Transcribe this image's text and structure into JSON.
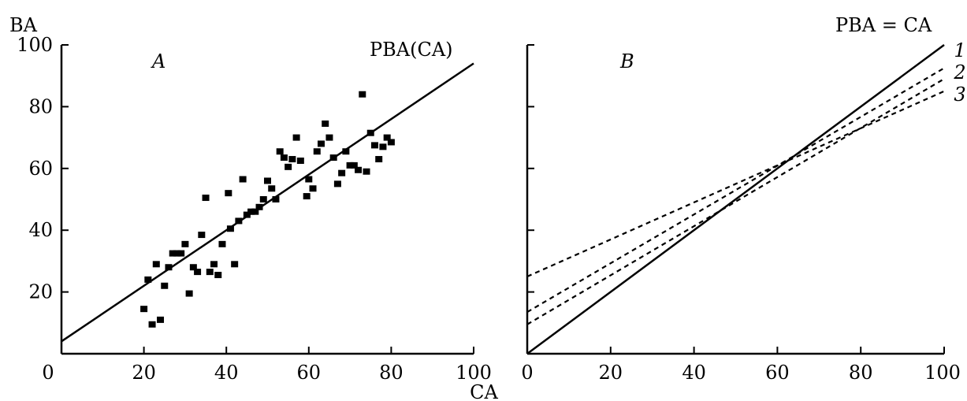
{
  "chart_data": [
    {
      "type": "scatter",
      "panel_label": "A",
      "ylabel": "BA",
      "xlabel": "CA",
      "xlim": [
        0,
        100
      ],
      "ylim": [
        0,
        100
      ],
      "x_ticks": [
        0,
        20,
        40,
        60,
        80,
        100
      ],
      "y_ticks": [
        0,
        20,
        40,
        60,
        80,
        100
      ],
      "line_label": "PBA(CA)",
      "regression_line": {
        "x": [
          0,
          100
        ],
        "y": [
          4,
          94
        ]
      },
      "points": [
        {
          "x": 20,
          "y": 14.5
        },
        {
          "x": 21,
          "y": 24
        },
        {
          "x": 22,
          "y": 9.5
        },
        {
          "x": 23,
          "y": 29
        },
        {
          "x": 24,
          "y": 11
        },
        {
          "x": 25,
          "y": 22
        },
        {
          "x": 26,
          "y": 28
        },
        {
          "x": 27,
          "y": 32.5
        },
        {
          "x": 28,
          "y": 32.5
        },
        {
          "x": 29,
          "y": 32.5
        },
        {
          "x": 30,
          "y": 35.5
        },
        {
          "x": 31,
          "y": 19.5
        },
        {
          "x": 32,
          "y": 28
        },
        {
          "x": 33,
          "y": 26.5
        },
        {
          "x": 34,
          "y": 38.5
        },
        {
          "x": 35,
          "y": 50.5
        },
        {
          "x": 36,
          "y": 26.5
        },
        {
          "x": 37,
          "y": 29
        },
        {
          "x": 38,
          "y": 25.5
        },
        {
          "x": 39,
          "y": 35.5
        },
        {
          "x": 40.5,
          "y": 52
        },
        {
          "x": 41,
          "y": 40.5
        },
        {
          "x": 42,
          "y": 29
        },
        {
          "x": 43,
          "y": 43
        },
        {
          "x": 44,
          "y": 56.5
        },
        {
          "x": 45,
          "y": 45
        },
        {
          "x": 46,
          "y": 46
        },
        {
          "x": 47,
          "y": 46
        },
        {
          "x": 48,
          "y": 47.5
        },
        {
          "x": 49,
          "y": 50
        },
        {
          "x": 50,
          "y": 56
        },
        {
          "x": 51,
          "y": 53.5
        },
        {
          "x": 52,
          "y": 50
        },
        {
          "x": 53,
          "y": 65.5
        },
        {
          "x": 54,
          "y": 63.5
        },
        {
          "x": 55,
          "y": 60.5
        },
        {
          "x": 56,
          "y": 63
        },
        {
          "x": 57,
          "y": 70
        },
        {
          "x": 58,
          "y": 62.5
        },
        {
          "x": 59.5,
          "y": 51
        },
        {
          "x": 60,
          "y": 56.5
        },
        {
          "x": 61,
          "y": 53.5
        },
        {
          "x": 62,
          "y": 65.5
        },
        {
          "x": 63,
          "y": 68
        },
        {
          "x": 64,
          "y": 74.5
        },
        {
          "x": 65,
          "y": 70
        },
        {
          "x": 66,
          "y": 63.5
        },
        {
          "x": 67,
          "y": 55
        },
        {
          "x": 68,
          "y": 58.5
        },
        {
          "x": 69,
          "y": 65.5
        },
        {
          "x": 70,
          "y": 61
        },
        {
          "x": 71,
          "y": 61
        },
        {
          "x": 72,
          "y": 59.5
        },
        {
          "x": 73,
          "y": 84
        },
        {
          "x": 74,
          "y": 59
        },
        {
          "x": 75,
          "y": 71.5
        },
        {
          "x": 76,
          "y": 67.5
        },
        {
          "x": 77,
          "y": 63
        },
        {
          "x": 78,
          "y": 67
        },
        {
          "x": 79,
          "y": 70
        },
        {
          "x": 80,
          "y": 68.5
        }
      ]
    },
    {
      "type": "line",
      "panel_label": "B",
      "xlabel": "CA",
      "xlim": [
        0,
        100
      ],
      "ylim": [
        0,
        100
      ],
      "x_ticks": [
        0,
        20,
        40,
        60,
        80,
        100
      ],
      "line_label": "PBA = CA",
      "identity_line": {
        "x": [
          0,
          100
        ],
        "y": [
          0,
          100
        ]
      },
      "series": [
        {
          "name": "1",
          "x": [
            0,
            100
          ],
          "y": [
            13.5,
            92.5
          ]
        },
        {
          "name": "2",
          "x": [
            0,
            100
          ],
          "y": [
            9.5,
            89
          ]
        },
        {
          "name": "3",
          "x": [
            0,
            100
          ],
          "y": [
            25,
            85
          ]
        }
      ]
    }
  ]
}
